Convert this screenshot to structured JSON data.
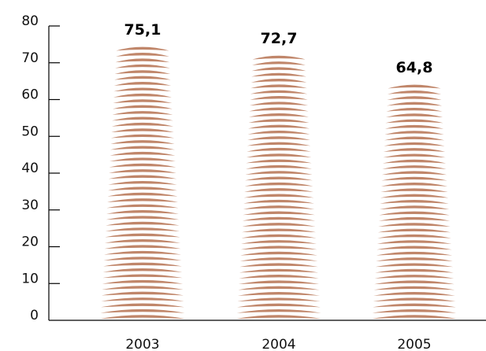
{
  "chart_data": {
    "type": "bar",
    "categories": [
      "2003",
      "2004",
      "2005"
    ],
    "values": [
      75.1,
      72.7,
      64.8
    ],
    "value_labels": [
      "75,1",
      "72,7",
      "64,8"
    ],
    "title": "",
    "xlabel": "",
    "ylabel": "",
    "ylim": [
      0,
      80
    ],
    "yticks": [
      "0",
      "10",
      "20",
      "30",
      "40",
      "50",
      "60",
      "70",
      "80"
    ],
    "grid": false,
    "legend": "none",
    "bar_color": "#c0866a",
    "axis_color": "#000000"
  }
}
